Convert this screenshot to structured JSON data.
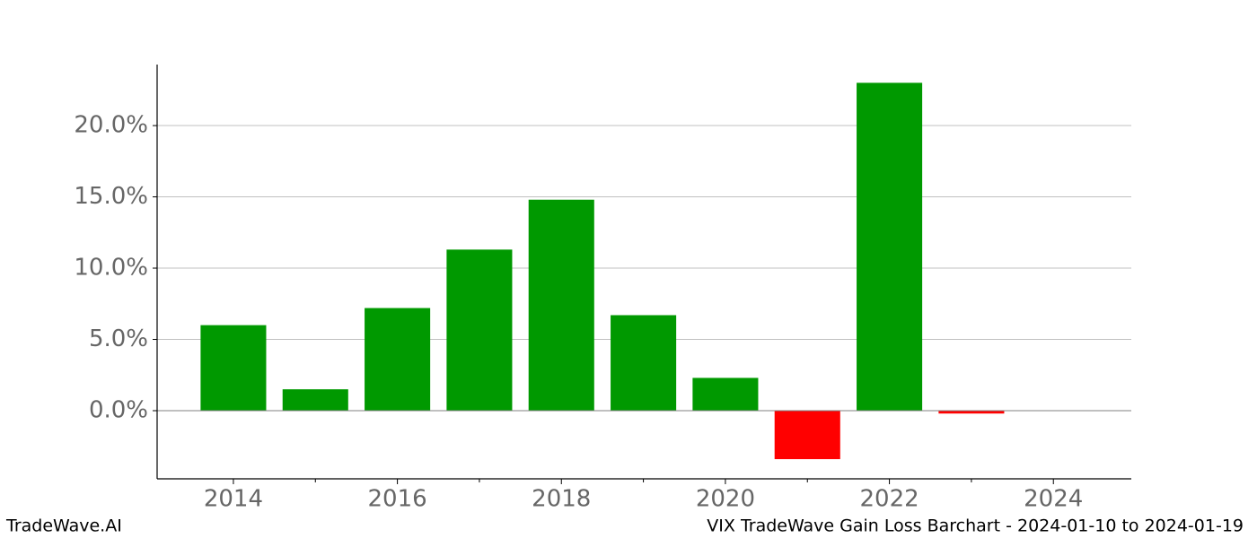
{
  "chart_data": {
    "type": "bar",
    "title": "VIX TradeWave Gain Loss Barchart - 2024-01-10 to 2024-01-19",
    "watermark": "TradeWave.AI",
    "x": [
      2014,
      2015,
      2016,
      2017,
      2018,
      2019,
      2020,
      2021,
      2022,
      2023
    ],
    "values": [
      6.0,
      1.5,
      7.2,
      11.3,
      14.8,
      6.7,
      2.3,
      -3.4,
      23.0,
      -0.2
    ],
    "positive_color": "#009900",
    "negative_color": "#ff0000",
    "xlim": [
      2013.07,
      2024.95
    ],
    "xticks": [
      2014,
      2016,
      2018,
      2020,
      2022,
      2024
    ],
    "xminorticks": [
      2015,
      2017,
      2019,
      2021,
      2023
    ],
    "ylim": [
      -4.78,
      24.28
    ],
    "yticks": [
      {
        "value": 0,
        "label": "0.0%"
      },
      {
        "value": 5,
        "label": "5.0%"
      },
      {
        "value": 10,
        "label": "10.0%"
      },
      {
        "value": 15,
        "label": "15.0%"
      },
      {
        "value": 20,
        "label": "20.0%"
      }
    ],
    "grid": true
  }
}
